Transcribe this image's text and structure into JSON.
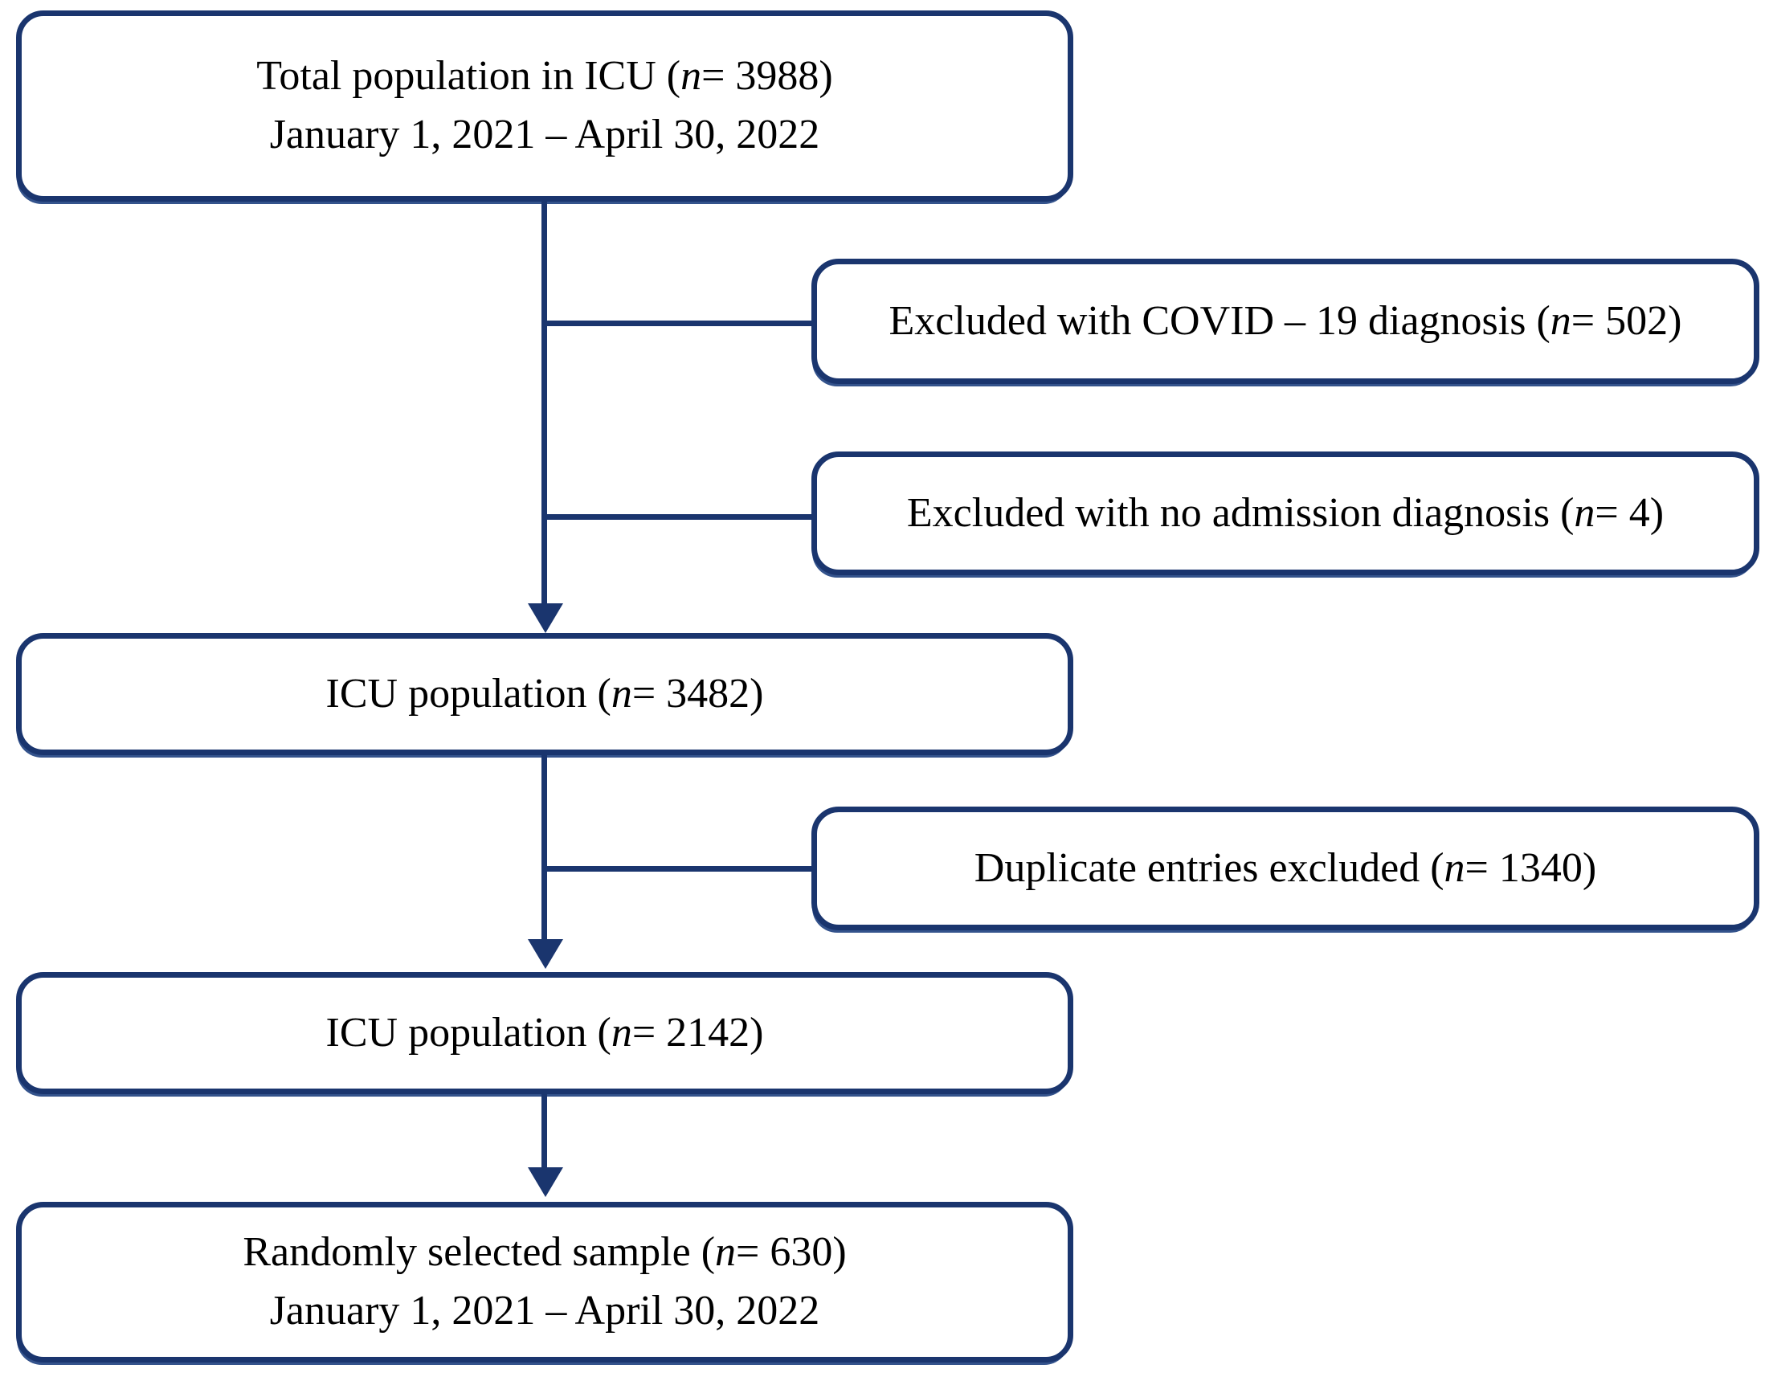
{
  "diagram": {
    "kind": "patient-flow-diagram",
    "colors": {
      "accent": "#1a356e",
      "text": "#000000",
      "background": "#ffffff"
    },
    "boxes": {
      "total": {
        "pre": "Total population in ICU (",
        "n": "n",
        "post": "= 3988)",
        "line2": "January 1, 2021 – April 30, 2022"
      },
      "excluded_covid": {
        "pre": "Excluded with COVID – 19 diagnosis (",
        "n": "n",
        "post": "= 502)"
      },
      "excluded_no_diagnosis": {
        "pre": "Excluded with no admission diagnosis (",
        "n": "n",
        "post": "= 4)"
      },
      "icu_population_1": {
        "pre": "ICU population (",
        "n": "n",
        "post": "= 3482)"
      },
      "duplicates_excluded": {
        "pre": "Duplicate entries excluded (",
        "n": "n",
        "post": "= 1340)"
      },
      "icu_population_2": {
        "pre": "ICU population (",
        "n": "n",
        "post": "= 2142)"
      },
      "random_sample": {
        "pre": "Randomly selected sample (",
        "n": "n",
        "post": "= 630)",
        "line2": "January 1, 2021 – April 30, 2022"
      }
    }
  }
}
